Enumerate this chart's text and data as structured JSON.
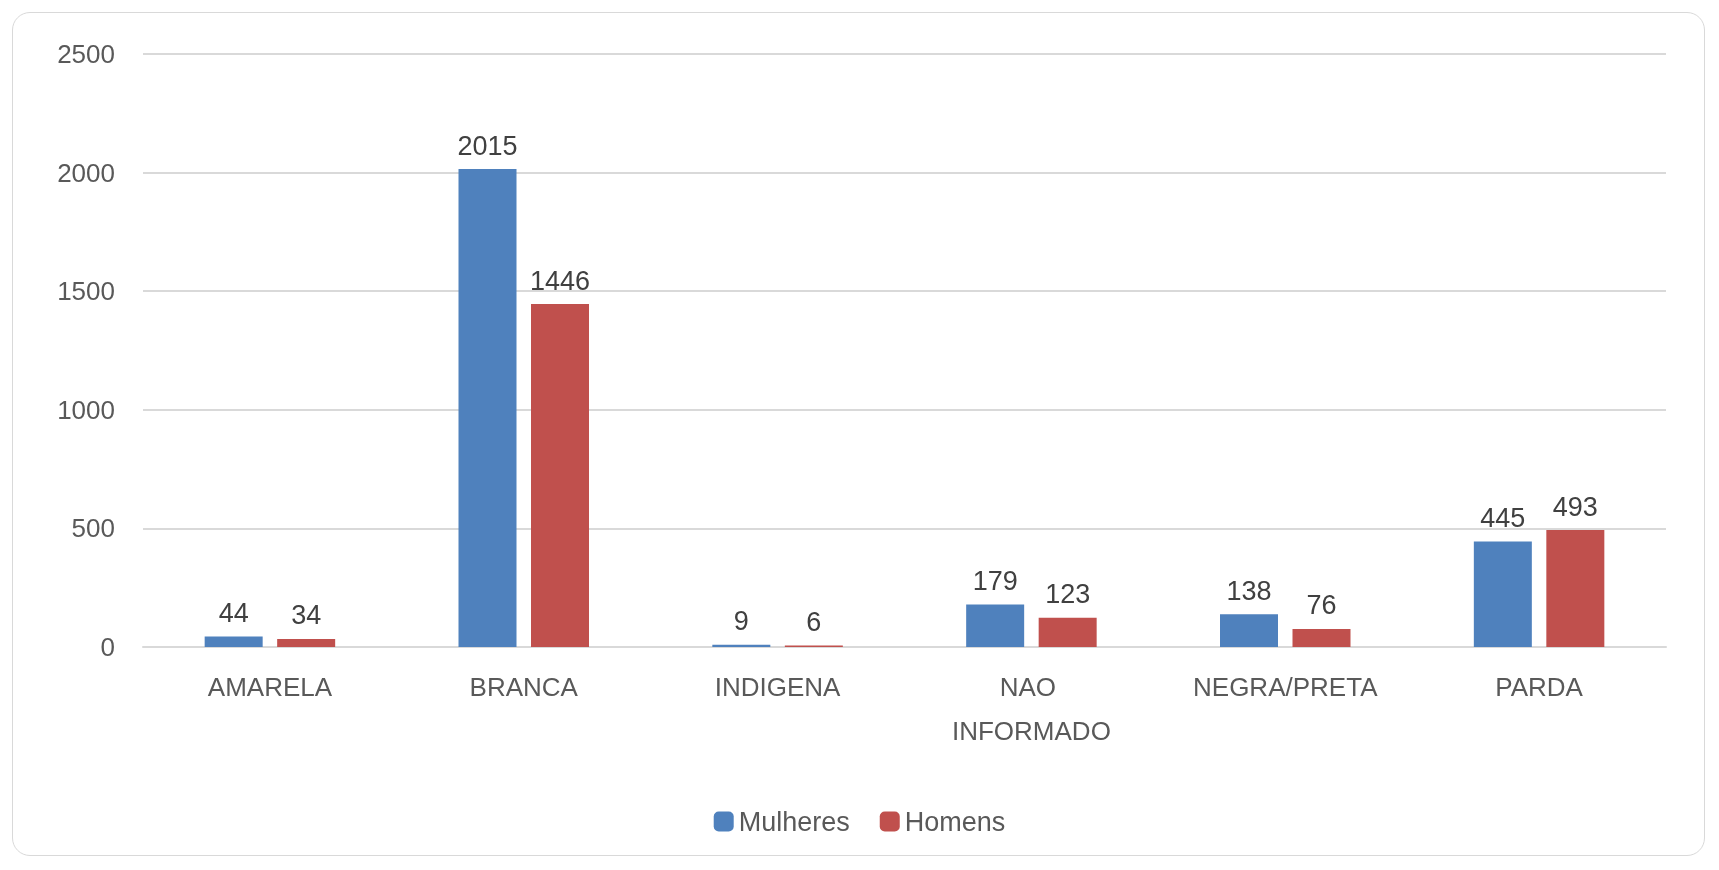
{
  "chart_data": {
    "type": "bar",
    "categories": [
      "AMARELA",
      "BRANCA",
      "INDIGENA",
      "NAO INFORMADO",
      "NEGRA/PRETA",
      "PARDA"
    ],
    "series": [
      {
        "name": "Mulheres",
        "color": "#4f81bd",
        "values": [
          44,
          2015,
          9,
          179,
          138,
          445
        ]
      },
      {
        "name": "Homens",
        "color": "#c0504d",
        "values": [
          34,
          1446,
          6,
          123,
          76,
          493
        ]
      }
    ],
    "ylim": [
      0,
      2500
    ],
    "yticks": [
      0,
      500,
      1000,
      1500,
      2000,
      2500
    ],
    "grid": "y",
    "legend": "bottom",
    "data_labels": true
  }
}
